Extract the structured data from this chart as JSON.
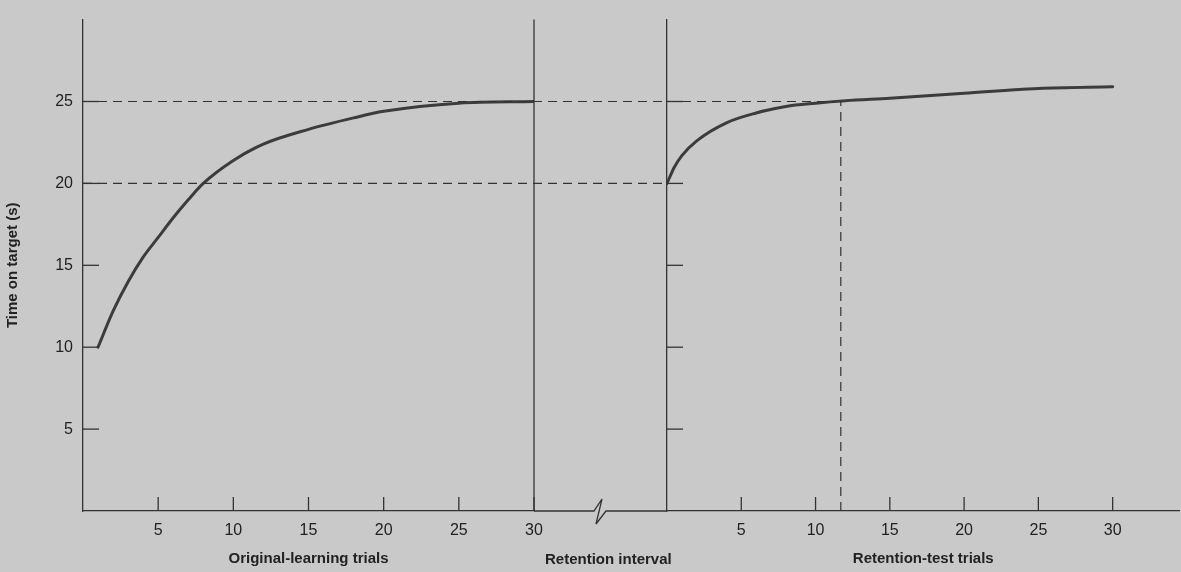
{
  "chart_data": [
    {
      "type": "line",
      "xlabel": "Original-learning trials",
      "ylabel": "Time on target (s)",
      "x": [
        1,
        2,
        3,
        4,
        5,
        6,
        7,
        8,
        10,
        12,
        15,
        18,
        20,
        25,
        30
      ],
      "series": [
        {
          "color": "#3c3c3c",
          "values": [
            10,
            12.2,
            14,
            15.5,
            16.7,
            17.9,
            19,
            20,
            21.4,
            22.4,
            23.3,
            24,
            24.4,
            24.9,
            25
          ]
        }
      ],
      "xlim": [
        0,
        30
      ],
      "xticks": [
        5,
        10,
        15,
        20,
        25,
        30
      ],
      "ylim": [
        0,
        30
      ],
      "yticks": [
        5,
        10,
        15,
        20,
        25
      ],
      "ref_lines": [
        {
          "axis": "y",
          "value": 25,
          "line_style": "dashed"
        },
        {
          "axis": "y",
          "value": 20,
          "line_style": "dashed"
        }
      ],
      "grid": false,
      "legend": false,
      "marker": "none",
      "line_style": "solid"
    },
    {
      "type": "line",
      "xlabel": "Retention-test trials",
      "annotations": [
        "Retention interval"
      ],
      "x": [
        0,
        0.5,
        1,
        2,
        4,
        6,
        8,
        10,
        12,
        15,
        20,
        25,
        30
      ],
      "series": [
        {
          "color": "#3c3c3c",
          "values": [
            20,
            21,
            21.7,
            22.6,
            23.7,
            24.3,
            24.7,
            24.9,
            25.05,
            25.2,
            25.5,
            25.8,
            25.9
          ]
        }
      ],
      "xlim": [
        0,
        34.5
      ],
      "xticks": [
        5,
        10,
        15,
        20,
        25,
        30
      ],
      "ylim": [
        0,
        30
      ],
      "yticks": [
        5,
        10,
        15,
        20,
        25
      ],
      "ref_lines": [
        {
          "axis": "y",
          "value": 25,
          "line_style": "dashed"
        },
        {
          "axis": "x",
          "value": 11.7,
          "line_style": "dashed"
        }
      ],
      "tick_labels": "x",
      "grid": false,
      "legend": false,
      "marker": "none",
      "line_style": "solid"
    }
  ]
}
